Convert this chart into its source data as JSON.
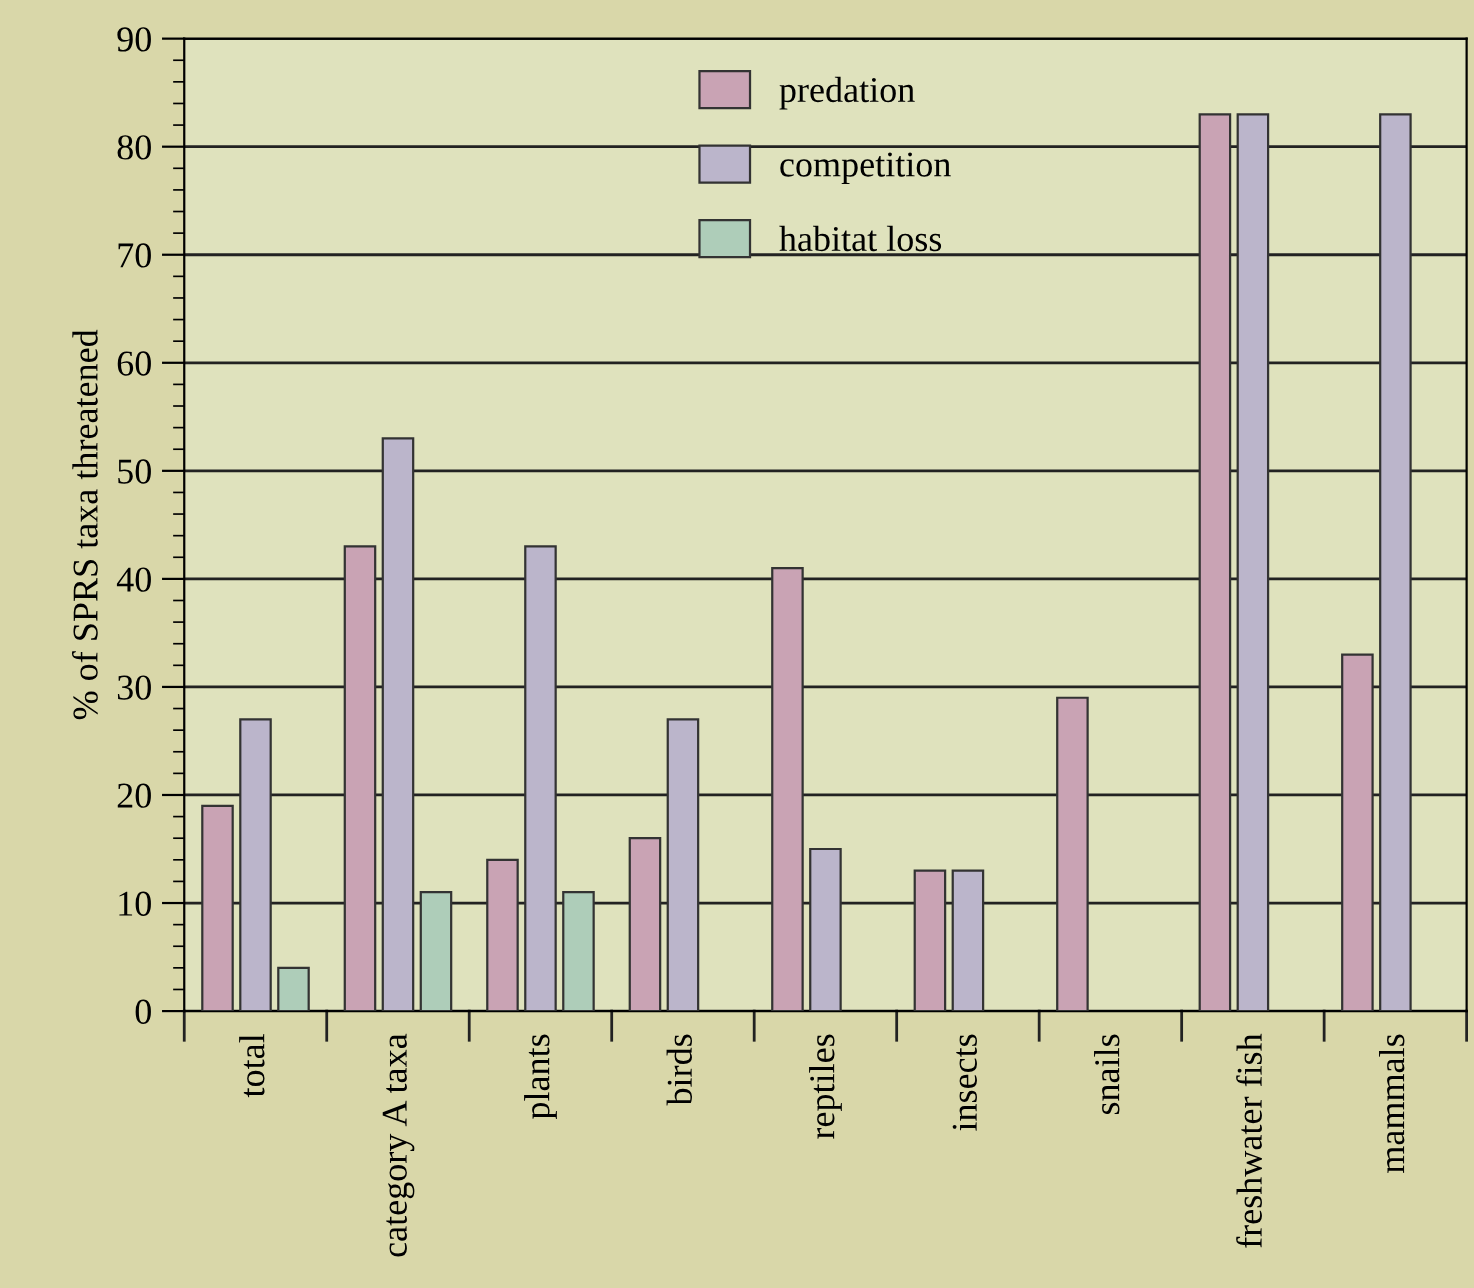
{
  "chart_data": {
    "type": "bar",
    "ylabel": "% of SPRS taxa threatened",
    "categories": [
      "total",
      "category A taxa",
      "plants",
      "birds",
      "reptiles",
      "insects",
      "snails",
      "freshwater fish",
      "mammals"
    ],
    "series": [
      {
        "name": "predation",
        "color": "#c9a3b4",
        "values": [
          19,
          43,
          14,
          16,
          41,
          13,
          29,
          83,
          33
        ]
      },
      {
        "name": "competition",
        "color": "#bbb5cb",
        "values": [
          27,
          53,
          43,
          27,
          15,
          13,
          null,
          83,
          83
        ]
      },
      {
        "name": "habitat loss",
        "color": "#aecdb9",
        "values": [
          4,
          11,
          11,
          null,
          null,
          null,
          null,
          null,
          null
        ]
      }
    ],
    "ylim": [
      0,
      90
    ],
    "yticks": [
      0,
      10,
      20,
      30,
      40,
      50,
      60,
      70,
      80,
      90
    ],
    "grid": "y",
    "legend": "top"
  }
}
